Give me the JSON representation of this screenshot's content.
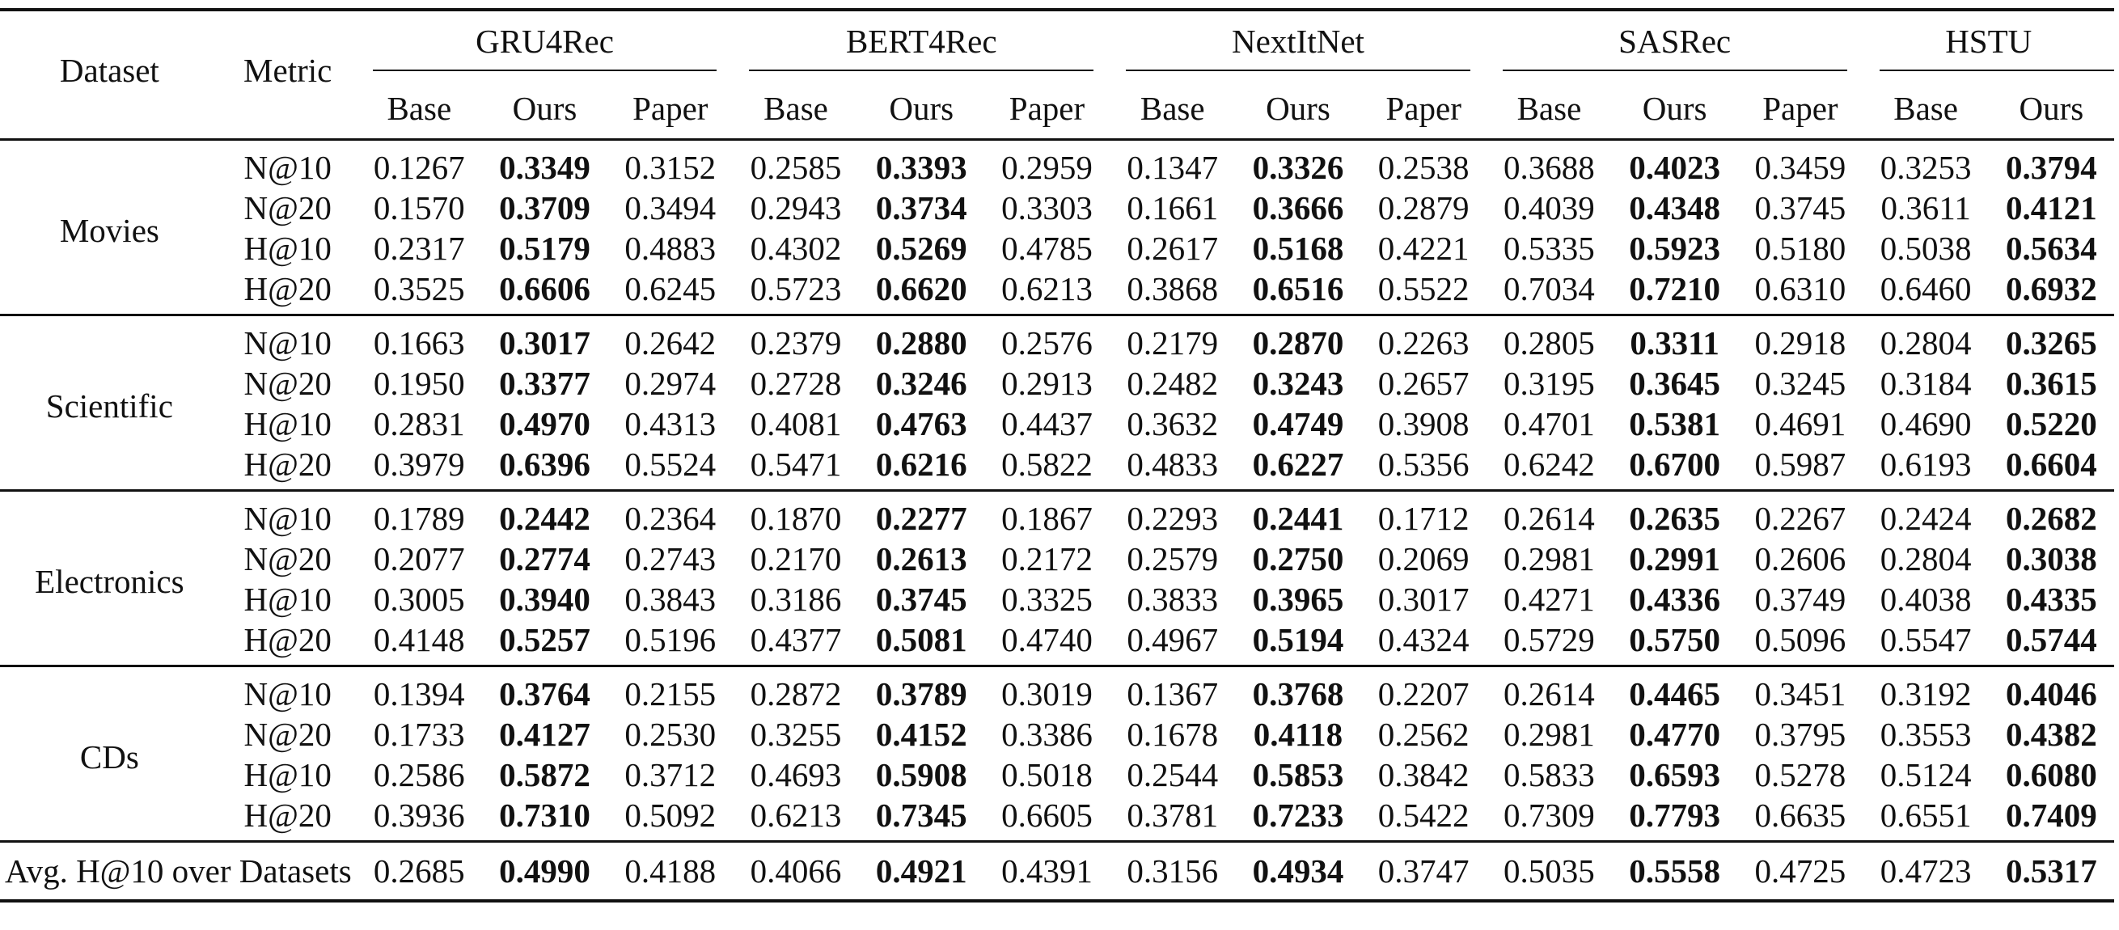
{
  "headers": {
    "dataset": "Dataset",
    "metric": "Metric",
    "models": [
      {
        "name": "GRU4Rec",
        "cols": [
          "Base",
          "Ours",
          "Paper"
        ]
      },
      {
        "name": "BERT4Rec",
        "cols": [
          "Base",
          "Ours",
          "Paper"
        ]
      },
      {
        "name": "NextItNet",
        "cols": [
          "Base",
          "Ours",
          "Paper"
        ]
      },
      {
        "name": "SASRec",
        "cols": [
          "Base",
          "Ours",
          "Paper"
        ]
      },
      {
        "name": "HSTU",
        "cols": [
          "Base",
          "Ours"
        ]
      }
    ]
  },
  "groups": [
    {
      "dataset": "Movies",
      "rows": [
        {
          "metric": "N@10",
          "values": [
            "0.1267",
            "0.3349",
            "0.3152",
            "0.2585",
            "0.3393",
            "0.2959",
            "0.1347",
            "0.3326",
            "0.2538",
            "0.3688",
            "0.4023",
            "0.3459",
            "0.3253",
            "0.3794"
          ]
        },
        {
          "metric": "N@20",
          "values": [
            "0.1570",
            "0.3709",
            "0.3494",
            "0.2943",
            "0.3734",
            "0.3303",
            "0.1661",
            "0.3666",
            "0.2879",
            "0.4039",
            "0.4348",
            "0.3745",
            "0.3611",
            "0.4121"
          ]
        },
        {
          "metric": "H@10",
          "values": [
            "0.2317",
            "0.5179",
            "0.4883",
            "0.4302",
            "0.5269",
            "0.4785",
            "0.2617",
            "0.5168",
            "0.4221",
            "0.5335",
            "0.5923",
            "0.5180",
            "0.5038",
            "0.5634"
          ]
        },
        {
          "metric": "H@20",
          "values": [
            "0.3525",
            "0.6606",
            "0.6245",
            "0.5723",
            "0.6620",
            "0.6213",
            "0.3868",
            "0.6516",
            "0.5522",
            "0.7034",
            "0.7210",
            "0.6310",
            "0.6460",
            "0.6932"
          ]
        }
      ]
    },
    {
      "dataset": "Scientific",
      "rows": [
        {
          "metric": "N@10",
          "values": [
            "0.1663",
            "0.3017",
            "0.2642",
            "0.2379",
            "0.2880",
            "0.2576",
            "0.2179",
            "0.2870",
            "0.2263",
            "0.2805",
            "0.3311",
            "0.2918",
            "0.2804",
            "0.3265"
          ]
        },
        {
          "metric": "N@20",
          "values": [
            "0.1950",
            "0.3377",
            "0.2974",
            "0.2728",
            "0.3246",
            "0.2913",
            "0.2482",
            "0.3243",
            "0.2657",
            "0.3195",
            "0.3645",
            "0.3245",
            "0.3184",
            "0.3615"
          ]
        },
        {
          "metric": "H@10",
          "values": [
            "0.2831",
            "0.4970",
            "0.4313",
            "0.4081",
            "0.4763",
            "0.4437",
            "0.3632",
            "0.4749",
            "0.3908",
            "0.4701",
            "0.5381",
            "0.4691",
            "0.4690",
            "0.5220"
          ]
        },
        {
          "metric": "H@20",
          "values": [
            "0.3979",
            "0.6396",
            "0.5524",
            "0.5471",
            "0.6216",
            "0.5822",
            "0.4833",
            "0.6227",
            "0.5356",
            "0.6242",
            "0.6700",
            "0.5987",
            "0.6193",
            "0.6604"
          ]
        }
      ]
    },
    {
      "dataset": "Electronics",
      "rows": [
        {
          "metric": "N@10",
          "values": [
            "0.1789",
            "0.2442",
            "0.2364",
            "0.1870",
            "0.2277",
            "0.1867",
            "0.2293",
            "0.2441",
            "0.1712",
            "0.2614",
            "0.2635",
            "0.2267",
            "0.2424",
            "0.2682"
          ]
        },
        {
          "metric": "N@20",
          "values": [
            "0.2077",
            "0.2774",
            "0.2743",
            "0.2170",
            "0.2613",
            "0.2172",
            "0.2579",
            "0.2750",
            "0.2069",
            "0.2981",
            "0.2991",
            "0.2606",
            "0.2804",
            "0.3038"
          ]
        },
        {
          "metric": "H@10",
          "values": [
            "0.3005",
            "0.3940",
            "0.3843",
            "0.3186",
            "0.3745",
            "0.3325",
            "0.3833",
            "0.3965",
            "0.3017",
            "0.4271",
            "0.4336",
            "0.3749",
            "0.4038",
            "0.4335"
          ]
        },
        {
          "metric": "H@20",
          "values": [
            "0.4148",
            "0.5257",
            "0.5196",
            "0.4377",
            "0.5081",
            "0.4740",
            "0.4967",
            "0.5194",
            "0.4324",
            "0.5729",
            "0.5750",
            "0.5096",
            "0.5547",
            "0.5744"
          ]
        }
      ]
    },
    {
      "dataset": "CDs",
      "rows": [
        {
          "metric": "N@10",
          "values": [
            "0.1394",
            "0.3764",
            "0.2155",
            "0.2872",
            "0.3789",
            "0.3019",
            "0.1367",
            "0.3768",
            "0.2207",
            "0.2614",
            "0.4465",
            "0.3451",
            "0.3192",
            "0.4046"
          ]
        },
        {
          "metric": "N@20",
          "values": [
            "0.1733",
            "0.4127",
            "0.2530",
            "0.3255",
            "0.4152",
            "0.3386",
            "0.1678",
            "0.4118",
            "0.2562",
            "0.2981",
            "0.4770",
            "0.3795",
            "0.3553",
            "0.4382"
          ]
        },
        {
          "metric": "H@10",
          "values": [
            "0.2586",
            "0.5872",
            "0.3712",
            "0.4693",
            "0.5908",
            "0.5018",
            "0.2544",
            "0.5853",
            "0.3842",
            "0.5833",
            "0.6593",
            "0.5278",
            "0.5124",
            "0.6080"
          ]
        },
        {
          "metric": "H@20",
          "values": [
            "0.3936",
            "0.7310",
            "0.5092",
            "0.6213",
            "0.7345",
            "0.6605",
            "0.3781",
            "0.7233",
            "0.5422",
            "0.7309",
            "0.7793",
            "0.6635",
            "0.6551",
            "0.7409"
          ]
        }
      ]
    }
  ],
  "average": {
    "label": "Avg. H@10 over Datasets",
    "values": [
      "0.2685",
      "0.4990",
      "0.4188",
      "0.4066",
      "0.4921",
      "0.4391",
      "0.3156",
      "0.4934",
      "0.3747",
      "0.5035",
      "0.5558",
      "0.4725",
      "0.4723",
      "0.5317"
    ]
  },
  "bold_columns": [
    1,
    4,
    7,
    10,
    13
  ]
}
